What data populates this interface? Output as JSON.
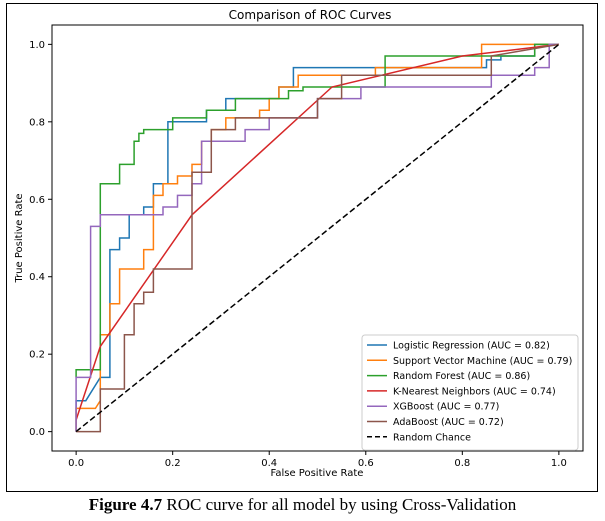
{
  "caption": {
    "label": "Figure 4.7",
    "text": " ROC curve for all model by using Cross-Validation"
  },
  "chart_data": {
    "type": "line",
    "title": "Comparison of ROC Curves",
    "xlabel": "False Positive Rate",
    "ylabel": "True Positive Rate",
    "xlim": [
      -0.05,
      1.05
    ],
    "ylim": [
      -0.05,
      1.05
    ],
    "xticks": [
      "0.0",
      "0.2",
      "0.4",
      "0.6",
      "0.8",
      "1.0"
    ],
    "yticks": [
      "0.0",
      "0.2",
      "0.4",
      "0.6",
      "0.8",
      "1.0"
    ],
    "grid": false,
    "legend_position": "bottom-right",
    "series": [
      {
        "name": "Logistic Regression (AUC = 0.82)",
        "color": "#1f77b4",
        "x": [
          0,
          0,
          0.02,
          0.05,
          0.07,
          0.07,
          0.09,
          0.09,
          0.11,
          0.11,
          0.14,
          0.14,
          0.16,
          0.16,
          0.19,
          0.19,
          0.27,
          0.27,
          0.31,
          0.31,
          0.42,
          0.42,
          0.45,
          0.45,
          0.85,
          0.85,
          0.88,
          0.88,
          0.95,
          0.95,
          1.0
        ],
        "y": [
          0,
          0.08,
          0.08,
          0.14,
          0.14,
          0.47,
          0.47,
          0.5,
          0.5,
          0.56,
          0.56,
          0.58,
          0.58,
          0.64,
          0.64,
          0.8,
          0.8,
          0.83,
          0.83,
          0.86,
          0.86,
          0.89,
          0.89,
          0.94,
          0.94,
          0.96,
          0.96,
          0.97,
          0.97,
          1.0,
          1.0
        ]
      },
      {
        "name": "Support Vector Machine (AUC = 0.79)",
        "color": "#ff7f0e",
        "x": [
          0,
          0,
          0.04,
          0.05,
          0.05,
          0.07,
          0.07,
          0.09,
          0.09,
          0.14,
          0.14,
          0.16,
          0.16,
          0.18,
          0.18,
          0.21,
          0.21,
          0.24,
          0.24,
          0.26,
          0.26,
          0.28,
          0.28,
          0.31,
          0.31,
          0.38,
          0.38,
          0.4,
          0.4,
          0.42,
          0.42,
          0.46,
          0.46,
          0.62,
          0.62,
          0.84,
          0.84,
          1.0
        ],
        "y": [
          0,
          0.06,
          0.06,
          0.08,
          0.25,
          0.25,
          0.33,
          0.33,
          0.42,
          0.42,
          0.47,
          0.47,
          0.61,
          0.61,
          0.64,
          0.64,
          0.66,
          0.66,
          0.69,
          0.69,
          0.75,
          0.75,
          0.78,
          0.78,
          0.81,
          0.81,
          0.83,
          0.83,
          0.86,
          0.86,
          0.89,
          0.89,
          0.92,
          0.92,
          0.94,
          0.94,
          1.0,
          1.0
        ]
      },
      {
        "name": "Random Forest (AUC = 0.86)",
        "color": "#2ca02c",
        "x": [
          0,
          0,
          0.05,
          0.05,
          0.09,
          0.09,
          0.12,
          0.12,
          0.13,
          0.13,
          0.14,
          0.14,
          0.2,
          0.2,
          0.27,
          0.27,
          0.33,
          0.33,
          0.44,
          0.44,
          0.47,
          0.47,
          0.64,
          0.64,
          0.95,
          0.95,
          1.0
        ],
        "y": [
          0.14,
          0.16,
          0.16,
          0.64,
          0.64,
          0.69,
          0.69,
          0.75,
          0.75,
          0.77,
          0.77,
          0.78,
          0.78,
          0.81,
          0.81,
          0.83,
          0.83,
          0.86,
          0.86,
          0.88,
          0.88,
          0.89,
          0.89,
          0.97,
          0.97,
          1.0,
          1.0
        ]
      },
      {
        "name": "K-Nearest Neighbors (AUC = 0.74)",
        "color": "#d62728",
        "x": [
          0,
          0.05,
          0.24,
          0.53,
          0.8,
          1.0
        ],
        "y": [
          0.03,
          0.22,
          0.56,
          0.89,
          0.97,
          1.0
        ]
      },
      {
        "name": "XGBoost (AUC = 0.77)",
        "color": "#9467bd",
        "x": [
          0,
          0,
          0.03,
          0.03,
          0.05,
          0.05,
          0.18,
          0.18,
          0.21,
          0.21,
          0.24,
          0.24,
          0.26,
          0.26,
          0.35,
          0.35,
          0.4,
          0.4,
          0.5,
          0.5,
          0.59,
          0.59,
          0.86,
          0.86,
          0.95,
          0.95,
          0.98,
          0.98,
          1.0
        ],
        "y": [
          0,
          0.14,
          0.14,
          0.53,
          0.53,
          0.56,
          0.56,
          0.58,
          0.58,
          0.61,
          0.61,
          0.64,
          0.64,
          0.75,
          0.75,
          0.78,
          0.78,
          0.81,
          0.81,
          0.86,
          0.86,
          0.89,
          0.89,
          0.92,
          0.92,
          0.94,
          0.94,
          1.0,
          1.0
        ]
      },
      {
        "name": "AdaBoost (AUC = 0.72)",
        "color": "#8c564b",
        "x": [
          0,
          0.05,
          0.05,
          0.1,
          0.1,
          0.12,
          0.12,
          0.14,
          0.14,
          0.16,
          0.16,
          0.24,
          0.24,
          0.28,
          0.28,
          0.33,
          0.33,
          0.5,
          0.5,
          0.55,
          0.55,
          0.86,
          0.86,
          1.0
        ],
        "y": [
          0,
          0,
          0.11,
          0.11,
          0.25,
          0.25,
          0.33,
          0.33,
          0.36,
          0.36,
          0.42,
          0.42,
          0.67,
          0.67,
          0.78,
          0.78,
          0.81,
          0.81,
          0.86,
          0.86,
          0.92,
          0.92,
          0.97,
          1.0
        ]
      },
      {
        "name": "Random Chance",
        "color": "#000000",
        "dashed": true,
        "x": [
          0,
          1
        ],
        "y": [
          0,
          1
        ]
      }
    ]
  }
}
